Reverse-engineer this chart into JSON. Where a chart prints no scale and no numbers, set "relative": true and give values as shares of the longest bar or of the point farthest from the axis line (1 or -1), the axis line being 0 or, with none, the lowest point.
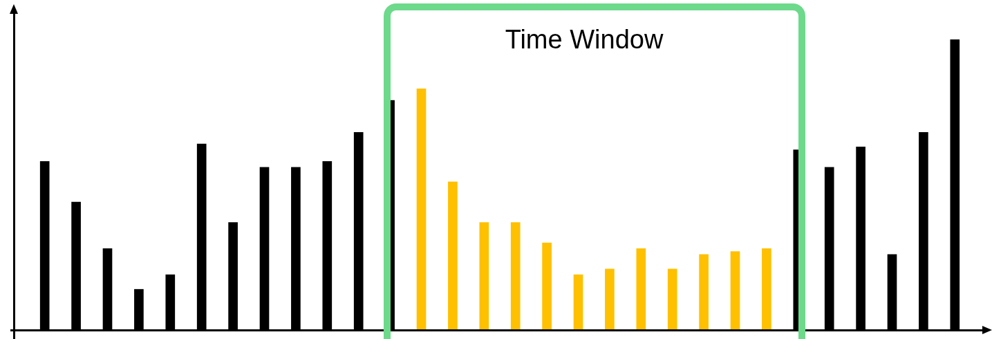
{
  "chart_data": {
    "type": "bar",
    "relative": true,
    "categories": [
      null,
      null,
      null,
      null,
      null,
      null,
      null,
      null,
      null,
      null,
      null,
      null,
      null,
      null,
      null,
      null,
      null,
      null,
      null,
      null,
      null,
      null,
      null,
      null,
      null,
      null,
      null,
      null,
      null,
      null
    ],
    "values": [
      0.58,
      0.44,
      0.28,
      0.14,
      0.19,
      0.64,
      0.37,
      0.56,
      0.56,
      0.58,
      0.68,
      0.79,
      0.83,
      0.51,
      0.37,
      0.37,
      0.3,
      0.19,
      0.21,
      0.28,
      0.21,
      0.26,
      0.27,
      0.28,
      0.62,
      0.56,
      0.63,
      0.26,
      0.68,
      1
    ],
    "colors": [
      "#000000",
      "#000000",
      "#000000",
      "#000000",
      "#000000",
      "#000000",
      "#000000",
      "#000000",
      "#000000",
      "#000000",
      "#000000",
      "#000000",
      "#ffc000",
      "#ffc000",
      "#ffc000",
      "#ffc000",
      "#ffc000",
      "#ffc000",
      "#ffc000",
      "#ffc000",
      "#ffc000",
      "#ffc000",
      "#ffc000",
      "#ffc000",
      "#000000",
      "#000000",
      "#000000",
      "#000000",
      "#000000",
      "#000000"
    ],
    "annotations": [
      "Time Window"
    ],
    "legend": false
  }
}
